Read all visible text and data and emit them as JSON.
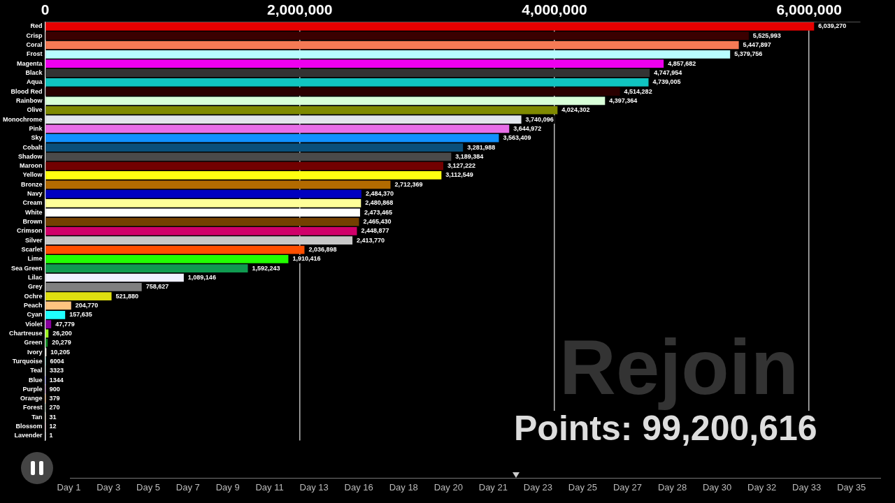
{
  "chart_data": {
    "type": "bar",
    "orientation": "horizontal",
    "categories": [
      "Red",
      "Crisp",
      "Coral",
      "Frost",
      "Magenta",
      "Black",
      "Aqua",
      "Blood Red",
      "Rainbow",
      "Olive",
      "Monochrome",
      "Pink",
      "Sky",
      "Cobalt",
      "Shadow",
      "Maroon",
      "Yellow",
      "Bronze",
      "Navy",
      "Cream",
      "White",
      "Brown",
      "Crimson",
      "Silver",
      "Scarlet",
      "Lime",
      "Sea Green",
      "Lilac",
      "Grey",
      "Ochre",
      "Peach",
      "Cyan",
      "Violet",
      "Chartreuse",
      "Green",
      "Ivory",
      "Turquoise",
      "Teal",
      "Blue",
      "Purple",
      "Orange",
      "Forest",
      "Tan",
      "Blossom",
      "Lavender"
    ],
    "values": [
      6039270,
      5525993,
      5447897,
      5379756,
      4857682,
      4747954,
      4739005,
      4514282,
      4397364,
      4024302,
      3740096,
      3644972,
      3563409,
      3281988,
      3189384,
      3127222,
      3112549,
      2712369,
      2484370,
      2480868,
      2473465,
      2465430,
      2448877,
      2413770,
      2036898,
      1910416,
      1592243,
      1089146,
      758627,
      521880,
      204770,
      157635,
      47779,
      26200,
      20279,
      10205,
      6004,
      3323,
      1344,
      900,
      379,
      270,
      31,
      12,
      1
    ],
    "value_labels": [
      "6,039,270",
      "5,525,993",
      "5,447,897",
      "5,379,756",
      "4,857,682",
      "4,747,954",
      "4,739,005",
      "4,514,282",
      "4,397,364",
      "4,024,302",
      "3,740,096",
      "3,644,972",
      "3,563,409",
      "3,281,988",
      "3,189,384",
      "3,127,222",
      "3,112,549",
      "2,712,369",
      "2,484,370",
      "2,480,868",
      "2,473,465",
      "2,465,430",
      "2,448,877",
      "2,413,770",
      "2,036,898",
      "1,910,416",
      "1,592,243",
      "1,089,146",
      "758,627",
      "521,880",
      "204,770",
      "157,635",
      "47,779",
      "26,200",
      "20,279",
      "10,205",
      "6004",
      "3323",
      "1344",
      "900",
      "379",
      "270",
      "31",
      "12",
      "1"
    ],
    "colors": [
      "#e60000",
      "#3a0000",
      "#f47a55",
      "#b8fdff",
      "#ee00ee",
      "#333333",
      "#10c4c0",
      "#2a0000",
      "#d8ffd8",
      "#7f8a00",
      "#e2e6ec",
      "#e86ee8",
      "#1090ff",
      "#0a4f7a",
      "#4a4a4a",
      "#720000",
      "#ffff10",
      "#b36b00",
      "#0000c0",
      "#ffff99",
      "#ffffff",
      "#744000",
      "#d0006a",
      "#c8c8c8",
      "#ff4f00",
      "#22ff00",
      "#109a50",
      "#f0f0ff",
      "#808080",
      "#e0e010",
      "#ffc480",
      "#20ffff",
      "#8a00a0",
      "#a0ff20",
      "#108a20",
      "#fffff0",
      "#30e0d0",
      "#008080",
      "#0000ff",
      "#800080",
      "#ff8000",
      "#205020",
      "#d2b48c",
      "#ffb7c5",
      "#e6e6fa"
    ],
    "xlim": [
      0,
      6400000
    ],
    "xticks": [
      0,
      {
        "value": 2000000,
        "label": "2,000,000"
      },
      {
        "value": 4000000,
        "label": "4,000,000"
      },
      {
        "value": 6000000,
        "label": "6,000,000"
      }
    ],
    "grid": "x",
    "annotations": [
      "Rejoin",
      "Points: 99,200,616",
      "Day 1",
      "Day 3",
      "Day 5",
      "Day 7",
      "Day 9",
      "Day 11",
      "Day 13",
      "Day 16",
      "Day 18",
      "Day 20",
      "Day 21",
      "Day 23",
      "Day 25",
      "Day 27",
      "Day 28",
      "Day 30",
      "Day 32",
      "Day 33",
      "Day 35"
    ]
  }
}
